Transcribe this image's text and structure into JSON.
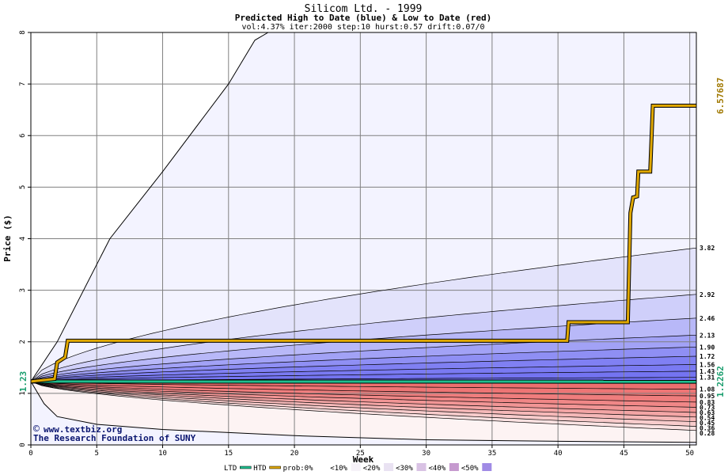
{
  "chart_data": {
    "type": "area",
    "title": "Silicom Ltd. - 1999",
    "subtitle": "Predicted High to Date (blue) &  Low to Date (red)",
    "params": "vol:4.37% iter:2000 step:10 hurst:0.57 drift:0.07/0",
    "xlabel": "Week",
    "ylabel": "Price ($)",
    "xlim": [
      0,
      50.5
    ],
    "ylim": [
      0,
      8
    ],
    "xticks": [
      "0",
      "5",
      "10",
      "15",
      "20",
      "25",
      "30",
      "35",
      "40",
      "45",
      "50"
    ],
    "yticks": [
      "0",
      "1",
      "2",
      "3",
      "4",
      "5",
      "6",
      "7",
      "8"
    ],
    "grid": true,
    "start_price": 1.23,
    "start_label": "1.23",
    "htd_final_label": "6.57687",
    "ltd_final_label": "1.2262",
    "colors": {
      "htd_line": "#e0a800",
      "ltd_line": "#1fbf8f",
      "plot_bg": "#f3f3ff",
      "band_blue": "#6f6ff5",
      "band_red": "#ee6a6a",
      "credit": "#0b1670"
    },
    "high_quantiles": [
      {
        "label": "3.82",
        "value": 3.82
      },
      {
        "label": "2.92",
        "value": 2.92
      },
      {
        "label": "2.46",
        "value": 2.46
      },
      {
        "label": "2.13",
        "value": 2.13
      },
      {
        "label": "1.90",
        "value": 1.9
      },
      {
        "label": "1.72",
        "value": 1.72
      },
      {
        "label": "1.56",
        "value": 1.56
      },
      {
        "label": "1.43",
        "value": 1.43
      },
      {
        "label": "1.31",
        "value": 1.31
      }
    ],
    "low_quantiles": [
      {
        "label": "1.08",
        "value": 1.08
      },
      {
        "label": "0.95",
        "value": 0.95
      },
      {
        "label": "0.83",
        "value": 0.83
      },
      {
        "label": "0.73",
        "value": 0.73
      },
      {
        "label": "0.63",
        "value": 0.63
      },
      {
        "label": "0.54",
        "value": 0.54
      },
      {
        "label": "0.45",
        "value": 0.45
      },
      {
        "label": "0.36",
        "value": 0.36
      },
      {
        "label": "0.28",
        "value": 0.28
      }
    ],
    "upper_envelope": [
      [
        0,
        1.23
      ],
      [
        2,
        2.0
      ],
      [
        6,
        4.0
      ],
      [
        10,
        5.3
      ],
      [
        15,
        7.0
      ],
      [
        17,
        7.85
      ],
      [
        18,
        8.0
      ]
    ],
    "lower_envelope": [
      [
        0,
        1.23
      ],
      [
        1,
        0.8
      ],
      [
        2,
        0.55
      ],
      [
        5,
        0.4
      ],
      [
        10,
        0.3
      ],
      [
        20,
        0.18
      ],
      [
        30,
        0.1
      ],
      [
        40,
        0.07
      ],
      [
        50.5,
        0.05
      ]
    ],
    "htd_series": [
      [
        0,
        1.23
      ],
      [
        1.8,
        1.28
      ],
      [
        2.0,
        1.6
      ],
      [
        2.6,
        1.7
      ],
      [
        2.8,
        2.02
      ],
      [
        40.7,
        2.02
      ],
      [
        40.8,
        2.38
      ],
      [
        45.3,
        2.38
      ],
      [
        45.5,
        4.5
      ],
      [
        45.7,
        4.8
      ],
      [
        46.0,
        4.82
      ],
      [
        46.1,
        5.3
      ],
      [
        47.0,
        5.3
      ],
      [
        47.2,
        6.58
      ],
      [
        50.5,
        6.58
      ]
    ],
    "ltd_series": [
      [
        0,
        1.23
      ],
      [
        50.5,
        1.2262
      ]
    ],
    "credit_lines": [
      "www.textbiz.org",
      "The Research Foundation of SUNY"
    ],
    "legend": {
      "items": [
        {
          "label": "LTD",
          "kind": "line",
          "color": "#1fbf8f"
        },
        {
          "label": "HTD",
          "kind": "line",
          "color": "#e0a800"
        },
        {
          "label": "prob:0%",
          "kind": "swatch",
          "color": "#ffffff"
        },
        {
          "label": "<10%",
          "kind": "swatch",
          "color": "#f6f2f8"
        },
        {
          "label": "<20%",
          "kind": "swatch",
          "color": "#e9e2f2"
        },
        {
          "label": "<30%",
          "kind": "swatch",
          "color": "#d9c2e4"
        },
        {
          "label": "<40%",
          "kind": "swatch",
          "color": "#c69acf"
        },
        {
          "label": "<50%",
          "kind": "swatch",
          "color": "#a08be5"
        }
      ]
    }
  }
}
